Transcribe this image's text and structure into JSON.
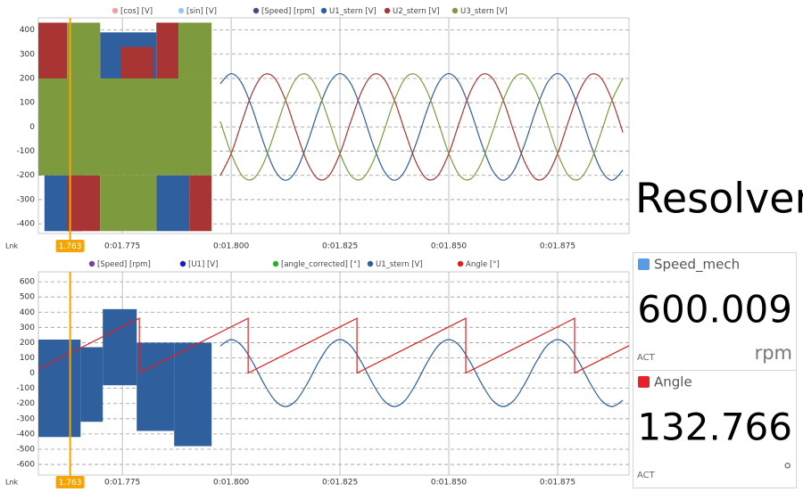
{
  "title": "Resolver",
  "chart_data": [
    {
      "type": "line",
      "corner_label": "Lnk",
      "cursor": 1.763,
      "xlim": [
        1.7557,
        1.8914
      ],
      "ylim": [
        -440,
        450
      ],
      "xticks": [
        {
          "value": 1.775,
          "label": "0:01.775"
        },
        {
          "value": 1.8,
          "label": "0:01.800"
        },
        {
          "value": 1.825,
          "label": "0:01.825"
        },
        {
          "value": 1.85,
          "label": "0:01.850"
        },
        {
          "value": 1.875,
          "label": "0:01.875"
        }
      ],
      "yticks": [
        -400,
        -300,
        -200,
        -100,
        0,
        100,
        200,
        300,
        400
      ],
      "grid": true,
      "series": [
        {
          "name": "[cos] [V]",
          "color": "#f2a0a0"
        },
        {
          "name": "[sin] [V]",
          "color": "#9cc8ef"
        },
        {
          "name": "[Speed] [rpm]",
          "color": "#4a4a86"
        },
        {
          "name": "U1_stern [V]",
          "color": "#2f5f9c",
          "bands": {
            "x0": [
              1.7571,
              1.7699,
              1.7828
            ],
            "x1": [
              1.7658,
              1.7828,
              1.7904
            ],
            "min": [
              -430,
              200,
              -430
            ],
            "max": [
              -200,
              390,
              -200
            ]
          },
          "x": [
            1.7975,
            1.8,
            1.8025,
            1.805,
            1.8075,
            1.81,
            1.8125,
            1.815,
            1.8175,
            1.82,
            1.8225,
            1.825,
            1.8275,
            1.83,
            1.8325,
            1.835,
            1.8375,
            1.84,
            1.8425,
            1.845,
            1.8475,
            1.85,
            1.8525,
            1.855,
            1.8575,
            1.86,
            1.8625,
            1.865,
            1.8675,
            1.87,
            1.8725,
            1.875,
            1.8775,
            1.88,
            1.8825,
            1.885,
            1.8875,
            1.89
          ],
          "values": [
            178,
            220,
            178,
            68,
            -68,
            -178,
            -220,
            -178,
            -68,
            68,
            178,
            220,
            178,
            68,
            -68,
            -178,
            -220,
            -178,
            -68,
            68,
            178,
            220,
            178,
            68,
            -68,
            -178,
            -220,
            -178,
            -68,
            68,
            178,
            220,
            178,
            68,
            -68,
            -178,
            -220,
            -178
          ]
        },
        {
          "name": "U2_stern [V]",
          "color": "#a83434",
          "bands": {
            "x0": [
              1.7557,
              1.7623,
              1.7746,
              1.7828,
              1.7904
            ],
            "x1": [
              1.7623,
              1.7699,
              1.7822,
              1.7879,
              1.7955
            ],
            "min": [
              -60,
              -430,
              100,
              80,
              -430
            ],
            "max": [
              430,
              -200,
              330,
              430,
              -200
            ]
          },
          "x": [
            1.7975,
            1.8,
            1.8025,
            1.805,
            1.8075,
            1.81,
            1.8125,
            1.815,
            1.8175,
            1.82,
            1.8225,
            1.825,
            1.8275,
            1.83,
            1.8325,
            1.835,
            1.8375,
            1.84,
            1.8425,
            1.845,
            1.8475,
            1.85,
            1.8525,
            1.855,
            1.8575,
            1.86,
            1.8625,
            1.865,
            1.8675,
            1.87,
            1.8725,
            1.875,
            1.8775,
            1.88,
            1.8825,
            1.885,
            1.8875,
            1.89
          ],
          "values": [
            -201,
            -110,
            23,
            147,
            215,
            201,
            110,
            -23,
            -147,
            -215,
            -201,
            -110,
            23,
            147,
            215,
            201,
            110,
            -23,
            -147,
            -215,
            -201,
            -110,
            23,
            147,
            215,
            201,
            110,
            -23,
            -147,
            -215,
            -201,
            -110,
            23,
            147,
            215,
            201,
            110,
            -23
          ]
        },
        {
          "name": "U3_stern [V]",
          "color": "#7d9b3e",
          "bands": {
            "x0": [
              1.7557,
              1.7623,
              1.7699,
              1.7879
            ],
            "x1": [
              1.7955,
              1.7699,
              1.7828,
              1.7955
            ],
            "min": [
              -200,
              200,
              -430,
              200
            ],
            "max": [
              200,
              430,
              -200,
              430
            ]
          },
          "x": [
            1.7975,
            1.8,
            1.8025,
            1.805,
            1.8075,
            1.81,
            1.8125,
            1.815,
            1.8175,
            1.82,
            1.8225,
            1.825,
            1.8275,
            1.83,
            1.8325,
            1.835,
            1.8375,
            1.84,
            1.8425,
            1.845,
            1.8475,
            1.85,
            1.8525,
            1.855,
            1.8575,
            1.86,
            1.8625,
            1.865,
            1.8675,
            1.87,
            1.8725,
            1.875,
            1.8775,
            1.88,
            1.8825,
            1.885,
            1.8875,
            1.89
          ],
          "values": [
            23,
            -110,
            -201,
            -215,
            -147,
            -23,
            110,
            201,
            215,
            147,
            23,
            -110,
            -201,
            -215,
            -147,
            -23,
            110,
            201,
            215,
            147,
            23,
            -110,
            -201,
            -215,
            -147,
            -23,
            110,
            201,
            215,
            147,
            23,
            -110,
            -201,
            -215,
            -147,
            -23,
            110,
            201
          ]
        }
      ]
    },
    {
      "type": "line",
      "corner_label": "Lnk",
      "cursor": 1.763,
      "xlim": [
        1.7557,
        1.8914
      ],
      "ylim": [
        -670,
        665
      ],
      "xticks": [
        {
          "value": 1.775,
          "label": "0:01.775"
        },
        {
          "value": 1.8,
          "label": "0:01.800"
        },
        {
          "value": 1.825,
          "label": "0:01.825"
        },
        {
          "value": 1.85,
          "label": "0:01.850"
        },
        {
          "value": 1.875,
          "label": "0:01.875"
        }
      ],
      "yticks": [
        -600,
        -500,
        -400,
        -300,
        -200,
        -100,
        0,
        100,
        200,
        300,
        400,
        500,
        600
      ],
      "grid": true,
      "series": [
        {
          "name": "[Speed] [rpm]",
          "color": "#6a4a9a"
        },
        {
          "name": "[U1] [V]",
          "color": "#1a1acc"
        },
        {
          "name": "[angle_corrected] [°]",
          "color": "#2ab02a"
        },
        {
          "name": "U1_stern [V]",
          "color": "#2f5f9c",
          "bands": {
            "x0": [
              1.7557,
              1.7654,
              1.7705,
              1.7783,
              1.7869
            ],
            "x1": [
              1.7654,
              1.7705,
              1.7783,
              1.7869,
              1.7955
            ],
            "min": [
              -420,
              -320,
              -80,
              -380,
              -480
            ],
            "max": [
              220,
              170,
              420,
              200,
              200
            ]
          },
          "x": [
            1.7975,
            1.8,
            1.8025,
            1.805,
            1.8075,
            1.81,
            1.8125,
            1.815,
            1.8175,
            1.82,
            1.8225,
            1.825,
            1.8275,
            1.83,
            1.8325,
            1.835,
            1.8375,
            1.84,
            1.8425,
            1.845,
            1.8475,
            1.85,
            1.8525,
            1.855,
            1.8575,
            1.86,
            1.8625,
            1.865,
            1.8675,
            1.87,
            1.8725,
            1.875,
            1.8775,
            1.88,
            1.8825,
            1.885,
            1.8875,
            1.89
          ],
          "values": [
            178,
            220,
            178,
            68,
            -68,
            -178,
            -220,
            -178,
            -68,
            68,
            178,
            220,
            178,
            68,
            -68,
            -178,
            -220,
            -178,
            -68,
            68,
            178,
            220,
            178,
            68,
            -68,
            -178,
            -220,
            -178,
            -68,
            68,
            178,
            220,
            178,
            68,
            -68,
            -178,
            -220,
            -178
          ]
        },
        {
          "name": "Angle [°]",
          "color": "#e02020",
          "x": [
            1.7557,
            1.7789,
            1.7789,
            1.8039,
            1.8039,
            1.8289,
            1.8289,
            1.8539,
            1.8539,
            1.8789,
            1.8789,
            1.8914
          ],
          "values": [
            26,
            360,
            0,
            360,
            0,
            360,
            0,
            360,
            0,
            360,
            0,
            180
          ]
        }
      ]
    }
  ],
  "panels": [
    {
      "label": "Speed_mech",
      "color": "#5b9be6",
      "value": 600.009,
      "status": "ACT",
      "unit": "rpm"
    },
    {
      "label": "Angle",
      "color": "#e8202a",
      "value": 132.766,
      "status": "ACT",
      "unit": "°"
    }
  ]
}
